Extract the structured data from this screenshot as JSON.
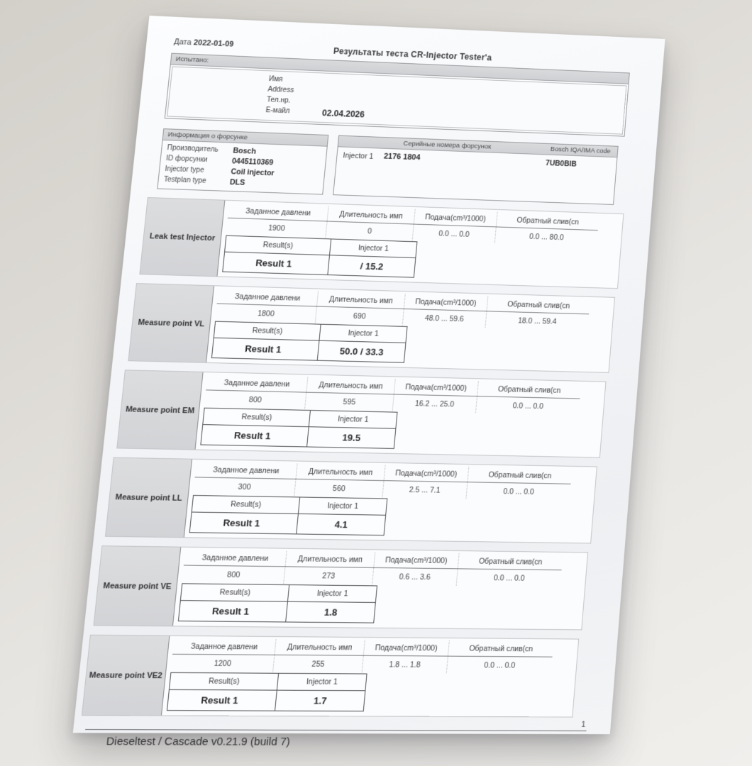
{
  "page": {
    "date_label": "Дата",
    "date_value": "2022-01-09",
    "title": "Результаты теста CR-Injector Tester'a",
    "footer": "Dieseltest / Cascade v0.21.9 (build 7)",
    "page_number": "1"
  },
  "tested_by": {
    "header": "Испытано:",
    "fields": [
      {
        "label": "Имя",
        "value": ""
      },
      {
        "label": "Address",
        "value": ""
      },
      {
        "label": "Тел.нр.",
        "value": ""
      },
      {
        "label": "E-майл",
        "value": "02.04.2026"
      }
    ]
  },
  "injector_info": {
    "header": "Информация о форсунке",
    "rows": [
      {
        "label": "Производитель",
        "value": "Bosch"
      },
      {
        "label": "ID форсунки",
        "value": "0445110369"
      },
      {
        "label": "Injector type",
        "value": "Coil injector"
      },
      {
        "label": "Testplan type",
        "value": "DLS"
      }
    ]
  },
  "serial_numbers": {
    "header": "Серийные номера форсунок",
    "code_header": "Bosch IQA/IMA code",
    "injector_label": "Injector 1",
    "serial": "2176 1804",
    "code": "7UB0BIB"
  },
  "column_headers": [
    "Заданное давлени",
    "Длительность имп",
    "Подача(cm³/1000)",
    "Обратный слив(cn"
  ],
  "result_header": {
    "left": "Result(s)",
    "right": "Injector 1"
  },
  "result_label": "Result 1",
  "check_glyph": "✓",
  "tests": [
    {
      "name": "Leak test Injector",
      "pressure": "1900",
      "duration": "0",
      "delivery": "0.0 ... 0.0",
      "backflow": "0.0 ... 80.0",
      "result_value": "/ 15.2"
    },
    {
      "name": "Measure point VL",
      "pressure": "1800",
      "duration": "690",
      "delivery": "48.0 ... 59.6",
      "backflow": "18.0 ... 59.4",
      "result_value": "50.0 / 33.3"
    },
    {
      "name": "Measure point EM",
      "pressure": "800",
      "duration": "595",
      "delivery": "16.2 ... 25.0",
      "backflow": "0.0 ... 0.0",
      "result_value": "19.5"
    },
    {
      "name": "Measure point LL",
      "pressure": "300",
      "duration": "560",
      "delivery": "2.5 ... 7.1",
      "backflow": "0.0 ... 0.0",
      "result_value": "4.1"
    },
    {
      "name": "Measure point VE",
      "pressure": "800",
      "duration": "273",
      "delivery": "0.6 ... 3.6",
      "backflow": "0.0 ... 0.0",
      "result_value": "1.8"
    },
    {
      "name": "Measure point VE2",
      "pressure": "1200",
      "duration": "255",
      "delivery": "1.8 ... 1.8",
      "backflow": "0.0 ... 0.0",
      "result_value": "1.7"
    }
  ]
}
